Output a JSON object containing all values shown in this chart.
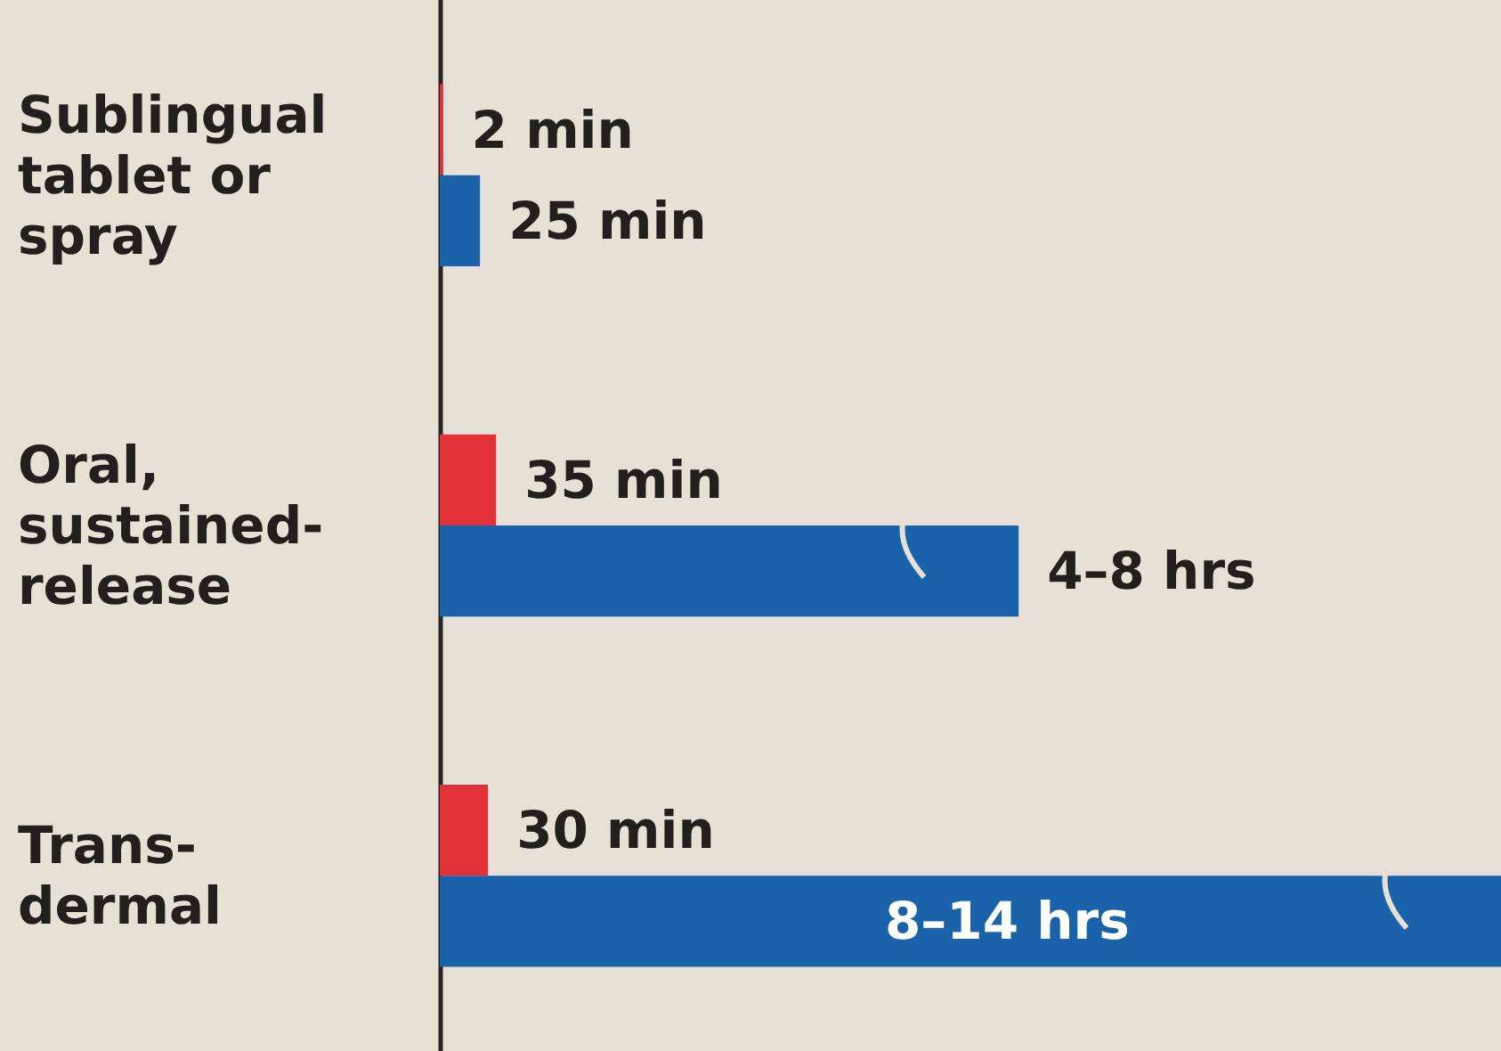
{
  "chart_data": {
    "type": "bar",
    "orientation": "horizontal",
    "categories": [
      "Sublingual\ntablet or\nspray",
      "Oral,\nsustained-\nrelease",
      "Trans-\ndermal"
    ],
    "xlim": [
      0,
      660
    ],
    "tick_labels": "y",
    "series": [
      {
        "color": "#e3313a",
        "values": [
          2,
          35,
          30
        ],
        "value_labels": [
          "2 min",
          "35 min",
          "30 min"
        ]
      },
      {
        "color": "#1a63ab",
        "values": [
          25,
          360,
          660
        ],
        "value_labels": [
          "25 min",
          "4–8 hrs",
          "8–14 hrs"
        ]
      }
    ]
  }
}
